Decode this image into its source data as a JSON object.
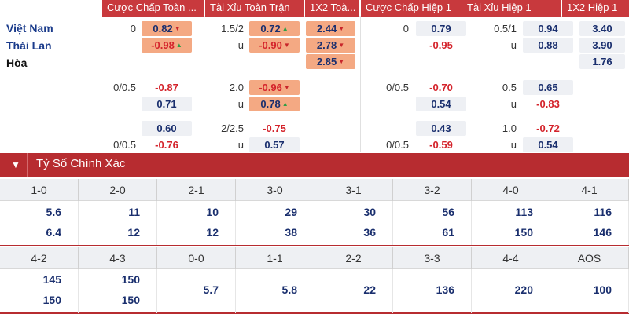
{
  "headers": [
    "Cược Chấp Toàn ...",
    "Tài Xỉu Toàn Trận",
    "1X2 Toà...",
    "Cược Chấp Hiệp 1",
    "Tài Xỉu Hiệp 1",
    "1X2 Hiệp 1"
  ],
  "teams": {
    "home": "Việt Nam",
    "away": "Thái Lan",
    "draw": "Hòa"
  },
  "main": {
    "hdp_line": "0",
    "hdp_home": "0.82",
    "hdp_away": "-0.98",
    "ou_line": "1.5/2",
    "ou_over": "0.72",
    "ou_under_label": "u",
    "ou_under": "-0.90",
    "x12_home": "2.44",
    "x12_away": "2.78",
    "x12_draw": "2.85",
    "h1_hdp_line": "0",
    "h1_hdp_home": "0.79",
    "h1_hdp_away": "-0.95",
    "h1_ou_line": "0.5/1",
    "h1_ou_over": "0.94",
    "h1_ou_under_label": "u",
    "h1_ou_under": "0.88",
    "h1_x12_home": "3.40",
    "h1_x12_away": "3.90",
    "h1_x12_draw": "1.76"
  },
  "alt1": {
    "hdp_line": "0/0.5",
    "hdp_home": "-0.87",
    "hdp_away": "0.71",
    "ou_line": "2.0",
    "ou_over": "-0.96",
    "ou_under_label": "u",
    "ou_under": "0.78",
    "h1_hdp_line": "0/0.5",
    "h1_hdp_home": "-0.70",
    "h1_hdp_away": "0.54",
    "h1_ou_line": "0.5",
    "h1_ou_over": "0.65",
    "h1_ou_under_label": "u",
    "h1_ou_under": "-0.83"
  },
  "alt2": {
    "hdp_home": "0.60",
    "hdp_line_away": "0/0.5",
    "hdp_away": "-0.76",
    "ou_line": "2/2.5",
    "ou_over": "-0.75",
    "ou_under_label": "u",
    "ou_under": "0.57",
    "h1_hdp_home": "0.43",
    "h1_hdp_line_away": "0/0.5",
    "h1_hdp_away": "-0.59",
    "h1_ou_line": "1.0",
    "h1_ou_over": "-0.72",
    "h1_ou_under_label": "u",
    "h1_ou_under": "0.54"
  },
  "correct_score": {
    "title": "Tỷ Số Chính Xác",
    "row1": [
      {
        "score": "1-0",
        "home": "5.6",
        "away": "6.4"
      },
      {
        "score": "2-0",
        "home": "11",
        "away": "12"
      },
      {
        "score": "2-1",
        "home": "10",
        "away": "12"
      },
      {
        "score": "3-0",
        "home": "29",
        "away": "38"
      },
      {
        "score": "3-1",
        "home": "30",
        "away": "36"
      },
      {
        "score": "3-2",
        "home": "56",
        "away": "61"
      },
      {
        "score": "4-0",
        "home": "113",
        "away": "150"
      },
      {
        "score": "4-1",
        "home": "116",
        "away": "146"
      }
    ],
    "row2": [
      {
        "score": "4-2",
        "home": "145",
        "away": "150"
      },
      {
        "score": "4-3",
        "home": "150",
        "away": "150"
      },
      {
        "score": "0-0",
        "single": "5.7"
      },
      {
        "score": "1-1",
        "single": "5.8"
      },
      {
        "score": "2-2",
        "single": "22"
      },
      {
        "score": "3-3",
        "single": "136"
      },
      {
        "score": "4-4",
        "single": "220"
      },
      {
        "score": "AOS",
        "single": "100"
      }
    ]
  },
  "colors": {
    "header_red": "#c8393d",
    "section_red": "#b72c30",
    "odd_blue": "#1a2f6e",
    "odd_red": "#d4232b",
    "highlight_orange": "#f4a983",
    "cell_grey": "#eef0f4",
    "arrow_up": "#2f9e44",
    "arrow_down": "#c8262b"
  }
}
